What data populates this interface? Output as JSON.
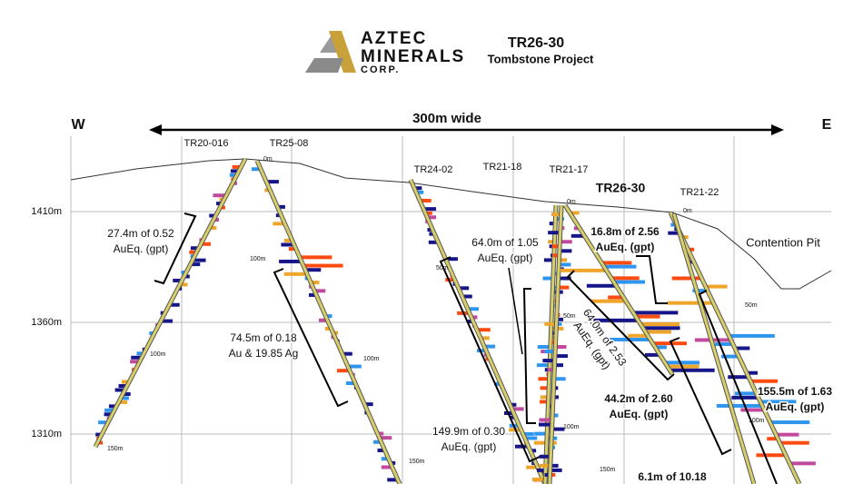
{
  "header": {
    "logo": {
      "line1": "AZTEC",
      "line2": "MINERALS",
      "line3": "CORP."
    },
    "title": "TR26-30",
    "subtitle": "Tombstone Project"
  },
  "section": {
    "west": "W",
    "east": "E",
    "width_label": "300m wide",
    "elevations": [
      "1410m",
      "1360m",
      "1310m"
    ],
    "drill_holes": [
      "TR20-016",
      "TR25-08",
      "TR24-02",
      "TR21-18",
      "TR21-17",
      "TR26-30",
      "TR21-22"
    ],
    "depth_marks": [
      "0m",
      "50m",
      "100m",
      "150m"
    ],
    "pit": "Contention Pit",
    "intercepts": [
      {
        "lines": [
          "27.4m of 0.52",
          "AuEq. (gpt)"
        ]
      },
      {
        "lines": [
          "74.5m of 0.18",
          "Au & 19.85 Ag"
        ]
      },
      {
        "lines": [
          "64.0m of 1.05",
          "AuEq. (gpt)"
        ]
      },
      {
        "lines": [
          "16.8m of 2.56",
          "AuEq. (gpt)"
        ]
      },
      {
        "lines": [
          "64.0m of 2.53",
          "AuEq. (gpt)"
        ]
      },
      {
        "lines": [
          "44.2m of 2.60",
          "AuEq. (gpt)"
        ]
      },
      {
        "lines": [
          "155.5m of 1.63",
          "AuEq. (gpt)"
        ]
      },
      {
        "lines": [
          "149.9m of 0.30",
          "AuEq. (gpt)"
        ]
      },
      {
        "lines": [
          "6.1m of 10.18"
        ]
      }
    ]
  }
}
